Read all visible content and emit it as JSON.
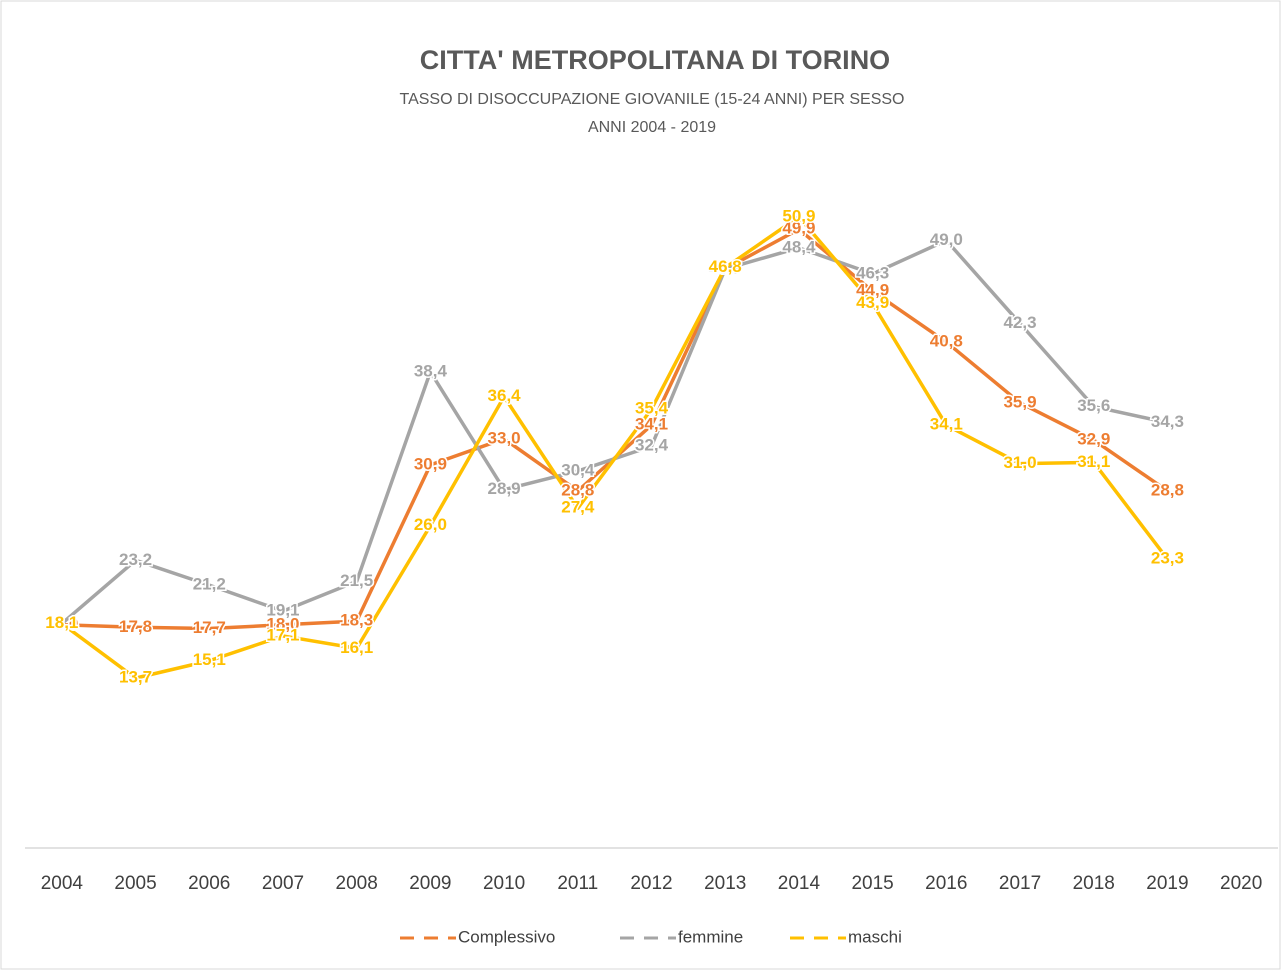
{
  "chart_data": {
    "type": "line",
    "title": "CITTA' METROPOLITANA DI TORINO",
    "subtitle": [
      "TASSO DI DISOCCUPAZIONE GIOVANILE (15-24 ANNI) PER SESSO",
      "ANNI 2004 - 2019"
    ],
    "categories": [
      "2004",
      "2005",
      "2006",
      "2007",
      "2008",
      "2009",
      "2010",
      "2011",
      "2012",
      "2013",
      "2014",
      "2015",
      "2016",
      "2017",
      "2018",
      "2019",
      "2020"
    ],
    "ylim": [
      0,
      60
    ],
    "legend": "bottom",
    "series": [
      {
        "name": "Complessivo",
        "color": "#ED7D31",
        "values": [
          18.0,
          17.8,
          17.7,
          18.0,
          18.3,
          30.9,
          33.0,
          28.8,
          34.1,
          46.7,
          49.9,
          44.9,
          40.8,
          35.9,
          32.9,
          28.8,
          null
        ],
        "value_labels": [
          "18,0",
          "17,8",
          "17,7",
          "18,0",
          "18,3",
          "30,9",
          "33,0",
          "28,8",
          "34,1",
          "46,7",
          "49,9",
          "44,9",
          "40,8",
          "35,9",
          "32,9",
          "28,8",
          null
        ]
      },
      {
        "name": "femmine",
        "color": "#A5A5A5",
        "values": [
          18.1,
          23.2,
          21.2,
          19.1,
          21.5,
          38.4,
          28.9,
          30.4,
          32.4,
          46.7,
          48.4,
          46.3,
          49.0,
          42.3,
          35.6,
          34.3,
          null
        ],
        "value_labels": [
          "18,1",
          "23,2",
          "21,2",
          "19,1",
          "21,5",
          "38,4",
          "28,9",
          "30,4",
          "32,4",
          "46,7",
          "48,4",
          "46,3",
          "49,0",
          "42,3",
          "35,6",
          "34,3",
          null
        ]
      },
      {
        "name": "maschi",
        "color": "#FFC000",
        "values": [
          18.1,
          13.7,
          15.1,
          17.1,
          16.1,
          26.0,
          36.4,
          27.4,
          35.4,
          46.8,
          50.9,
          43.9,
          34.1,
          31.0,
          31.1,
          23.3,
          null
        ],
        "value_labels": [
          "18,1",
          "13,7",
          "15,1",
          "17,1",
          "16,1",
          "26,0",
          "36,4",
          "27,4",
          "35,4",
          "46,8",
          "50,9",
          "43,9",
          "34,1",
          "31,0",
          "31,1",
          "23,3",
          null
        ]
      }
    ]
  }
}
